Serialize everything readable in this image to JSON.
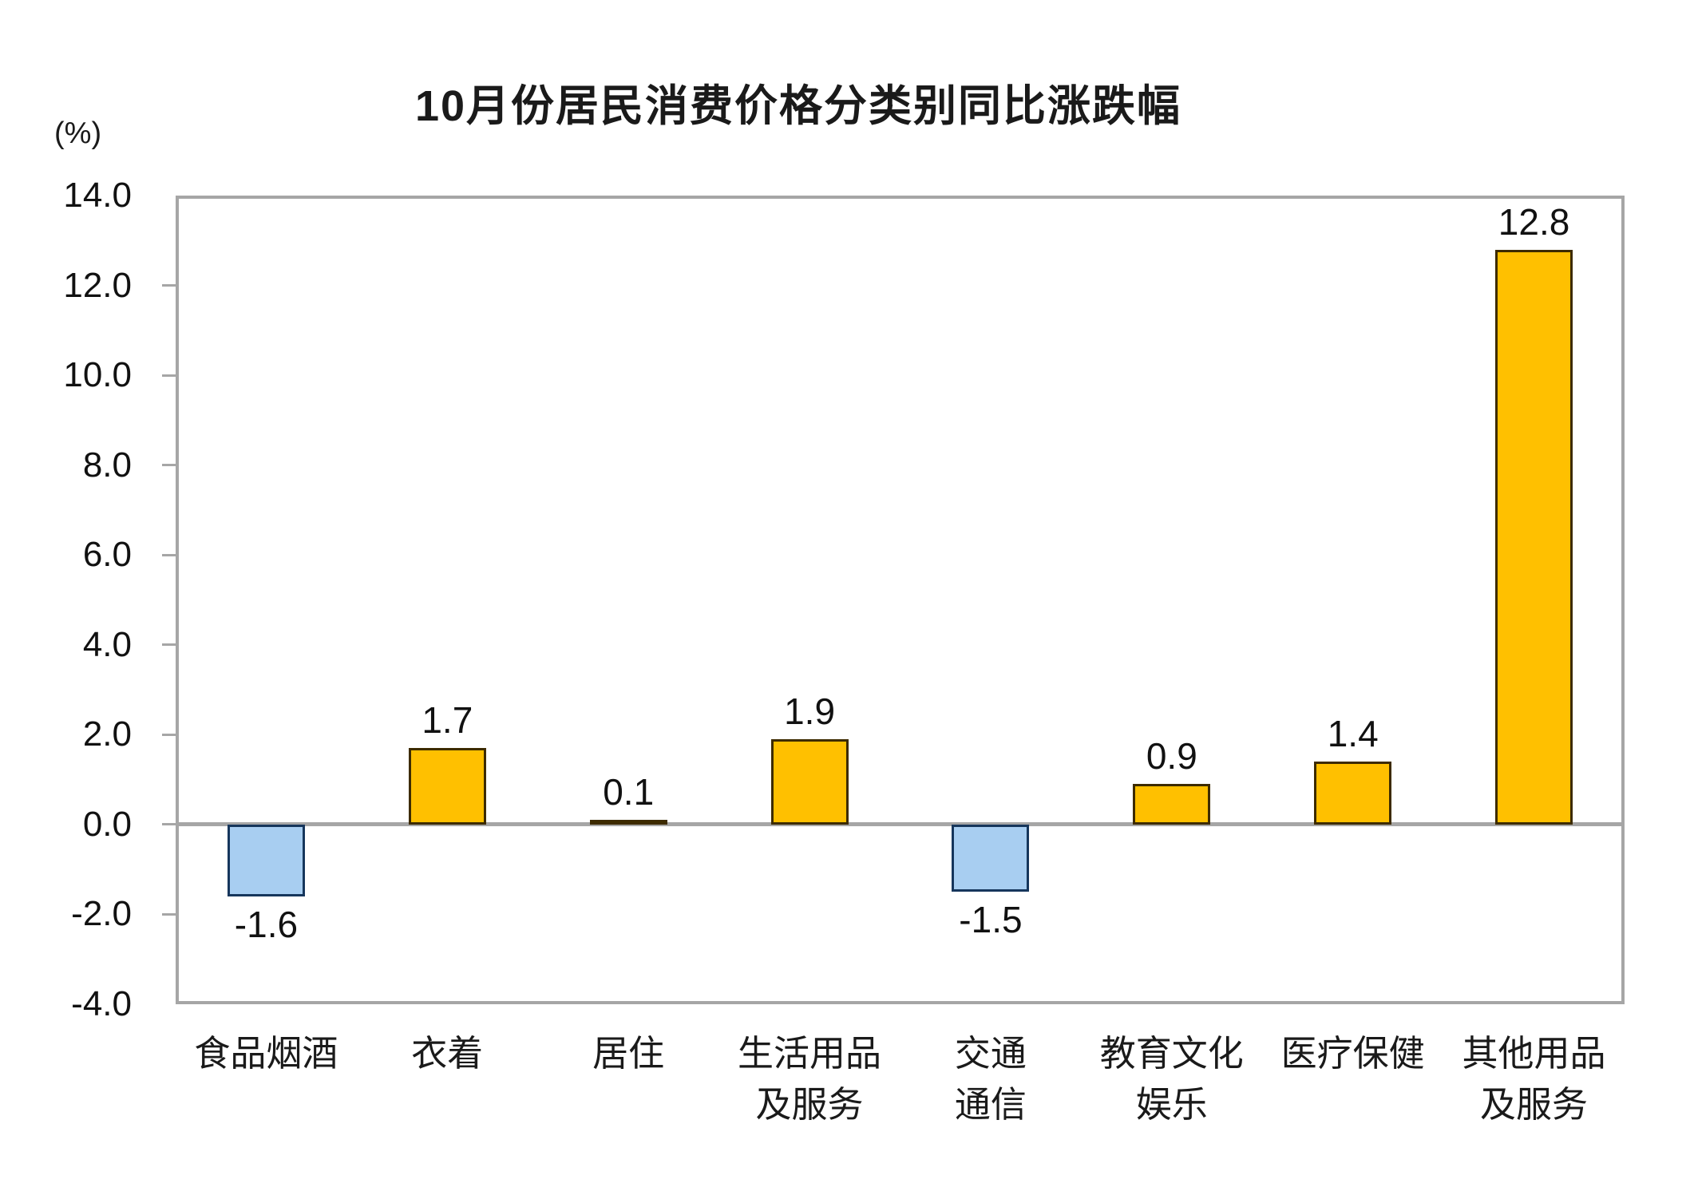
{
  "title": "10月份居民消费价格分类别同比涨跌幅",
  "unit_label": "(%)",
  "colors": {
    "positive_fill": "#FFC000",
    "positive_border": "#3D2B00",
    "negative_fill": "#A8CEF1",
    "negative_border": "#16365C",
    "axis_gray": "#A6A6A6",
    "text": "#000000"
  },
  "chart_data": {
    "type": "bar",
    "title": "10月份居民消费价格分类别同比涨跌幅",
    "ylabel": "(%)",
    "xlabel": "",
    "categories": [
      "食品烟酒",
      "衣着",
      "居住",
      "生活用品及服务",
      "交通通信",
      "教育文化娱乐",
      "医疗保健",
      "其他用品及服务"
    ],
    "category_lines": [
      [
        "食品烟酒"
      ],
      [
        "衣着"
      ],
      [
        "居住"
      ],
      [
        "生活用品",
        "及服务"
      ],
      [
        "交通",
        "通信"
      ],
      [
        "教育文化",
        "娱乐"
      ],
      [
        "医疗保健"
      ],
      [
        "其他用品",
        "及服务"
      ]
    ],
    "values": [
      -1.6,
      1.7,
      0.1,
      1.9,
      -1.5,
      0.9,
      1.4,
      12.8
    ],
    "data_labels": [
      "-1.6",
      "1.7",
      "0.1",
      "1.9",
      "-1.5",
      "0.9",
      "1.4",
      "12.8"
    ],
    "ylim": [
      -4.0,
      14.0
    ],
    "ytick_step": 2.0,
    "ytick_labels": [
      "14.0",
      "12.0",
      "10.0",
      "8.0",
      "6.0",
      "4.0",
      "2.0",
      "0.0",
      "-2.0",
      "-4.0"
    ],
    "grid": false,
    "legend_position": "none"
  }
}
